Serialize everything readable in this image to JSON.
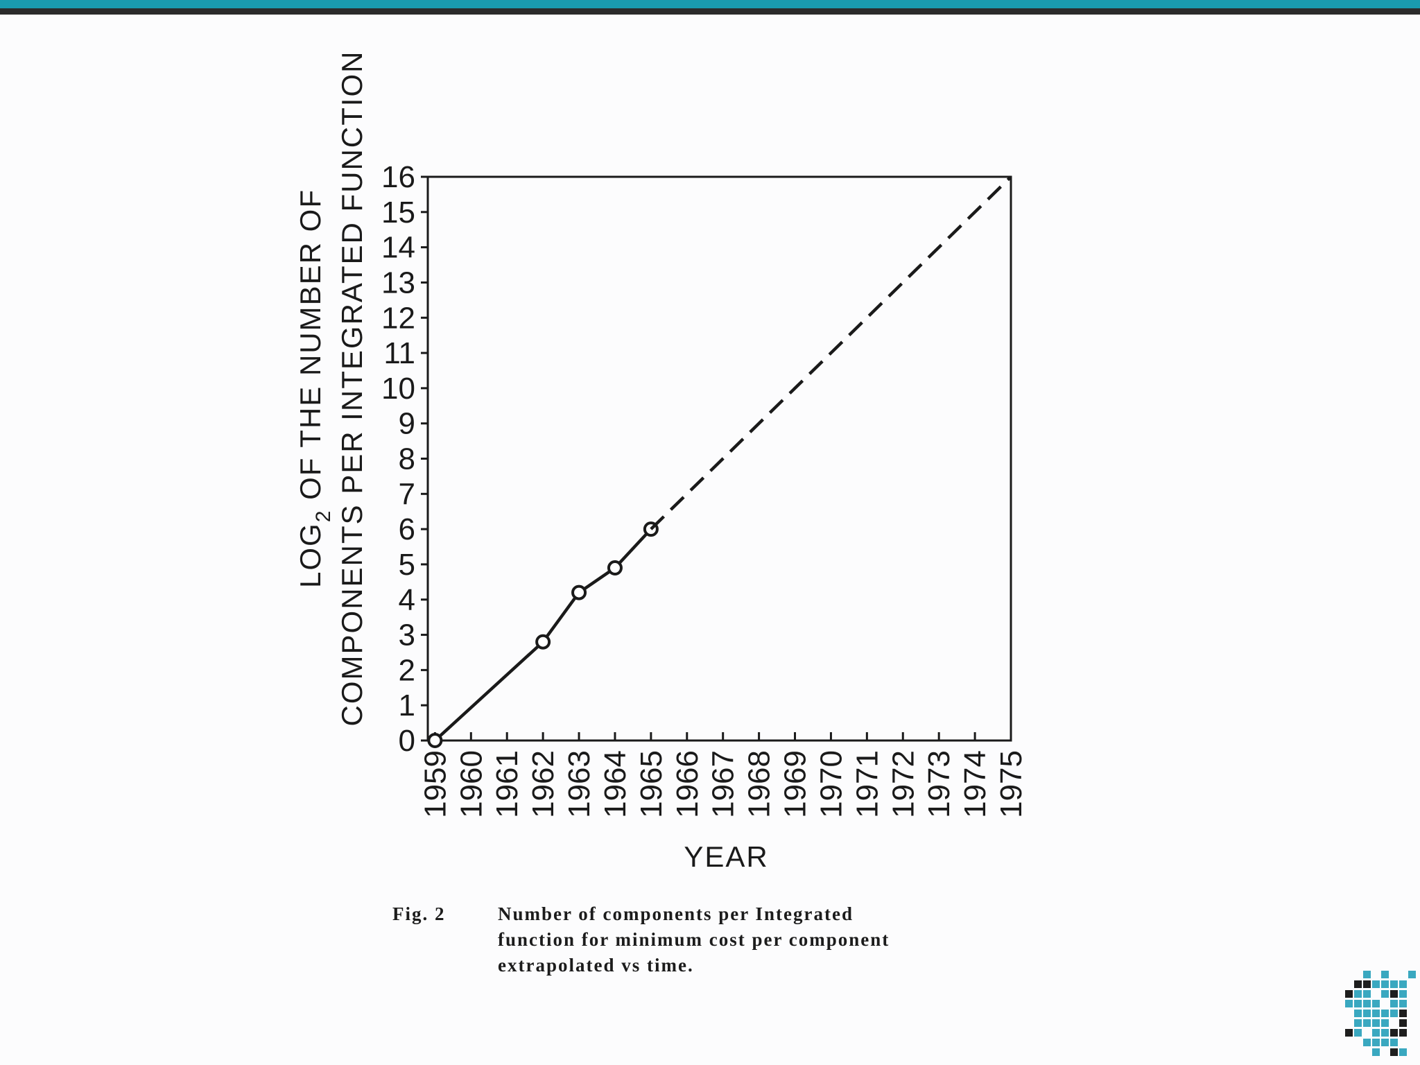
{
  "slide": {
    "accent_color": "#1a9aae",
    "dark_bar_color": "#2b2b2b",
    "logo_colors": [
      "#3aa8c0",
      "#1e1e1e"
    ]
  },
  "chart_data": {
    "type": "line",
    "title": "",
    "xlabel": "YEAR",
    "ylabel_line1": "LOG",
    "ylabel_subscript": "2",
    "ylabel_line1_rest": " OF THE NUMBER OF",
    "ylabel_line2": "COMPONENTS PER INTEGRATED FUNCTION",
    "x_ticks": [
      "1959",
      "1960",
      "1961",
      "1962",
      "1963",
      "1964",
      "1965",
      "1966",
      "1967",
      "1968",
      "1969",
      "1970",
      "1971",
      "1972",
      "1973",
      "1974",
      "1975"
    ],
    "y_ticks": [
      "0",
      "1",
      "2",
      "3",
      "4",
      "5",
      "6",
      "7",
      "8",
      "9",
      "10",
      "11",
      "12",
      "13",
      "14",
      "15",
      "16"
    ],
    "xlim": [
      1958.8,
      1975
    ],
    "ylim": [
      0,
      16
    ],
    "grid": false,
    "series": [
      {
        "style": "solid",
        "markers": "open-circle",
        "x": [
          1959,
          1962,
          1963,
          1964,
          1965
        ],
        "y": [
          0,
          2.8,
          4.2,
          4.9,
          6.0
        ]
      },
      {
        "style": "dashed",
        "markers": "none",
        "x": [
          1965,
          1975
        ],
        "y": [
          6.0,
          16
        ]
      }
    ]
  },
  "caption": {
    "label": "Fig. 2",
    "text": "Number of components per Integrated\nfunction for minimum cost per component\nextrapolated vs time."
  }
}
